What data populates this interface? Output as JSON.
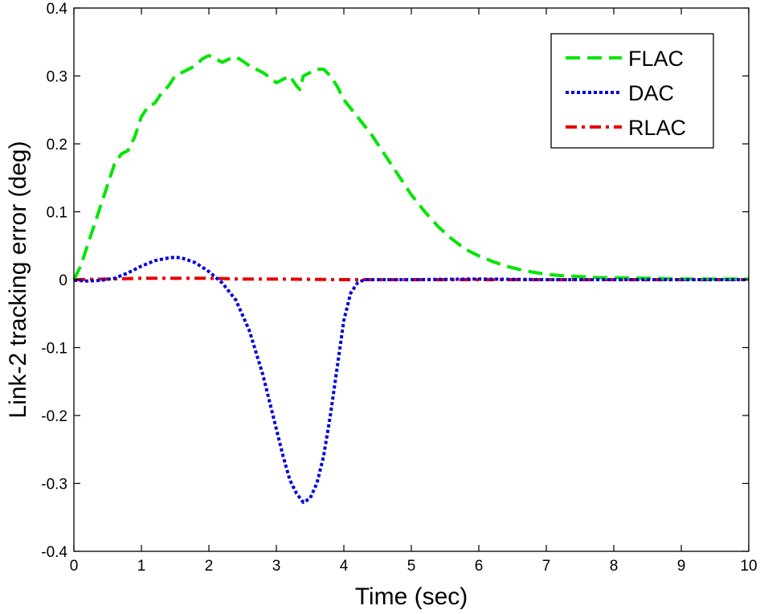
{
  "chart_data": {
    "type": "line",
    "title": "",
    "xlabel": "Time (sec)",
    "ylabel": "Link-2 tracking error (deg)",
    "xlim": [
      0,
      10
    ],
    "ylim": [
      -0.4,
      0.4
    ],
    "xticks": [
      "0",
      "1",
      "2",
      "3",
      "4",
      "5",
      "6",
      "7",
      "8",
      "9",
      "10"
    ],
    "yticks": [
      "-0.4",
      "-0.3",
      "-0.2",
      "-0.1",
      "0",
      "0.1",
      "0.2",
      "0.3",
      "0.4"
    ],
    "grid": false,
    "legend_position": "top-right",
    "series": [
      {
        "name": "FLAC",
        "color": "#00e600",
        "line_style": "dashed",
        "x": [
          0,
          0.1,
          0.2,
          0.3,
          0.4,
          0.5,
          0.6,
          0.7,
          0.8,
          0.9,
          1.0,
          1.1,
          1.2,
          1.3,
          1.4,
          1.5,
          1.6,
          1.7,
          1.8,
          1.9,
          2.0,
          2.1,
          2.2,
          2.3,
          2.4,
          2.5,
          2.6,
          2.7,
          2.8,
          2.9,
          3.0,
          3.1,
          3.2,
          3.3,
          3.35,
          3.4,
          3.5,
          3.6,
          3.7,
          3.8,
          3.9,
          4.0,
          4.2,
          4.4,
          4.6,
          4.8,
          5.0,
          5.2,
          5.4,
          5.6,
          5.8,
          6.0,
          6.2,
          6.4,
          6.6,
          6.8,
          7.0,
          7.2,
          7.4,
          7.6,
          7.8,
          8.0,
          8.5,
          9.0,
          9.5,
          10.0
        ],
        "y": [
          0.0,
          0.02,
          0.05,
          0.08,
          0.11,
          0.14,
          0.17,
          0.185,
          0.19,
          0.21,
          0.24,
          0.255,
          0.26,
          0.275,
          0.285,
          0.3,
          0.305,
          0.31,
          0.315,
          0.325,
          0.33,
          0.325,
          0.32,
          0.325,
          0.328,
          0.322,
          0.315,
          0.31,
          0.305,
          0.298,
          0.29,
          0.295,
          0.3,
          0.285,
          0.28,
          0.3,
          0.305,
          0.31,
          0.31,
          0.3,
          0.285,
          0.265,
          0.24,
          0.215,
          0.185,
          0.155,
          0.125,
          0.1,
          0.078,
          0.06,
          0.045,
          0.035,
          0.027,
          0.02,
          0.015,
          0.011,
          0.008,
          0.006,
          0.005,
          0.004,
          0.003,
          0.003,
          0.002,
          0.001,
          0.001,
          0.001
        ]
      },
      {
        "name": "DAC",
        "color": "#0000dd",
        "line_style": "dotted",
        "x": [
          0,
          0.2,
          0.4,
          0.6,
          0.8,
          1.0,
          1.2,
          1.4,
          1.5,
          1.6,
          1.8,
          2.0,
          2.2,
          2.4,
          2.6,
          2.8,
          3.0,
          3.1,
          3.2,
          3.3,
          3.4,
          3.5,
          3.6,
          3.7,
          3.8,
          3.9,
          4.0,
          4.1,
          4.2,
          4.3,
          4.5,
          5.0,
          6.0,
          7.0,
          8.0,
          9.0,
          10.0
        ],
        "y": [
          -0.001,
          -0.002,
          -0.001,
          0.002,
          0.01,
          0.02,
          0.028,
          0.032,
          0.033,
          0.032,
          0.025,
          0.012,
          -0.005,
          -0.03,
          -0.075,
          -0.14,
          -0.22,
          -0.26,
          -0.295,
          -0.315,
          -0.328,
          -0.322,
          -0.3,
          -0.26,
          -0.2,
          -0.13,
          -0.06,
          -0.02,
          -0.005,
          0.0,
          0.0,
          0.0,
          0.001,
          0.0,
          0.0,
          0.0,
          0.0
        ]
      },
      {
        "name": "RLAC",
        "color": "#e60000",
        "line_style": "dashdot",
        "x": [
          0,
          0.5,
          1.0,
          1.5,
          2.0,
          2.5,
          3.0,
          4.0,
          5.0,
          6.0,
          7.0,
          8.0,
          9.0,
          10.0
        ],
        "y": [
          0.0,
          0.001,
          0.002,
          0.002,
          0.002,
          0.001,
          0.001,
          0.0,
          0.0,
          0.0,
          0.0,
          0.0,
          0.0,
          0.0
        ]
      }
    ]
  }
}
